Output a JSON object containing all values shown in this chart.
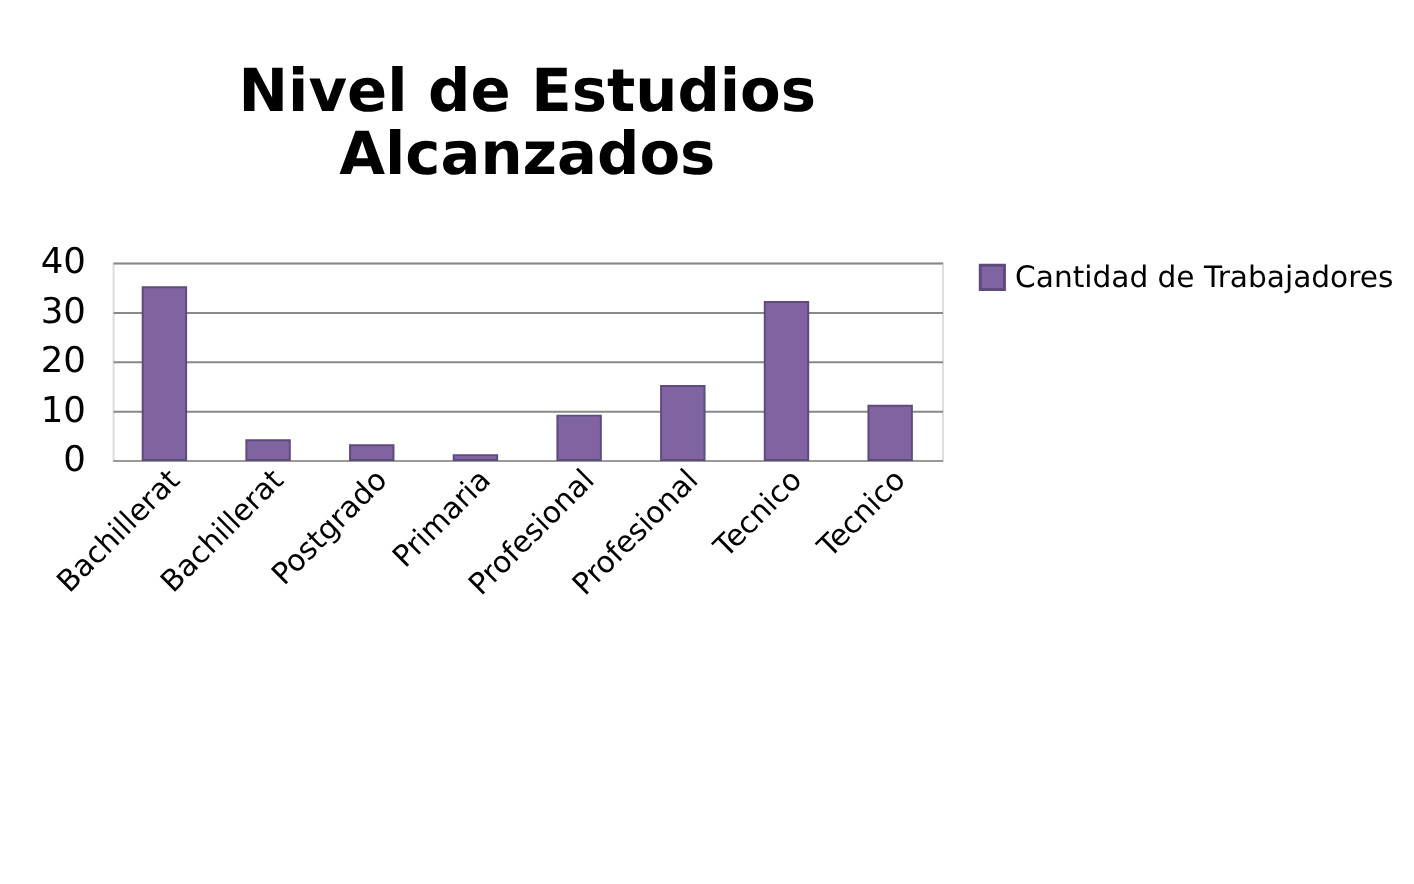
{
  "chart_data": {
    "type": "bar",
    "title": [
      "Nivel de Estudios",
      "Alcanzados"
    ],
    "categories": [
      "Bachillerat",
      "Bachillerat",
      "Postgrado",
      "Primaria",
      "Profesional",
      "Profesional",
      "Tecnico",
      "Tecnico"
    ],
    "series": [
      {
        "name": "Cantidad de Trabajadores",
        "color": "#8064a2",
        "values": [
          35,
          4,
          3,
          1,
          9,
          15,
          32,
          11
        ]
      }
    ],
    "ylim": [
      0,
      40
    ],
    "yticks": [
      0,
      10,
      20,
      30,
      40
    ],
    "grid": "y",
    "legend": "right"
  }
}
